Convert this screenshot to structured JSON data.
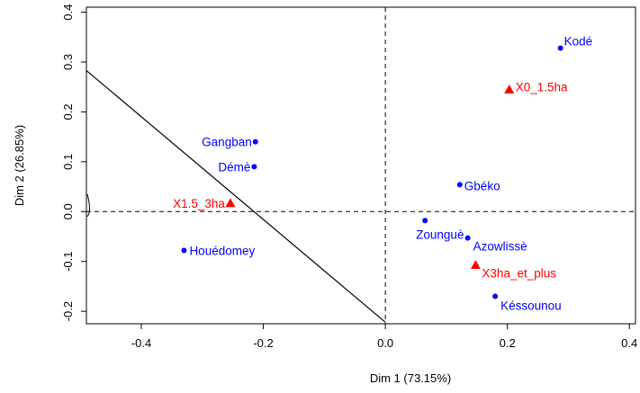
{
  "chart_data": {
    "type": "scatter",
    "xlabel": "Dim 1 (73.15%)",
    "ylabel": "Dim 2 (26.85%)",
    "xlim": [
      -0.49,
      0.41
    ],
    "ylim": [
      -0.225,
      0.41
    ],
    "xticks": [
      {
        "value": -0.4,
        "label": "-0.4"
      },
      {
        "value": -0.2,
        "label": "-0.2"
      },
      {
        "value": 0.0,
        "label": "0.0"
      },
      {
        "value": 0.2,
        "label": "0.2"
      },
      {
        "value": 0.4,
        "label": "0.4"
      }
    ],
    "yticks": [
      {
        "value": -0.2,
        "label": "-0.2"
      },
      {
        "value": -0.1,
        "label": "-0.1"
      },
      {
        "value": 0.0,
        "label": "0.0"
      },
      {
        "value": 0.1,
        "label": "0.1"
      },
      {
        "value": 0.2,
        "label": "0.2"
      },
      {
        "value": 0.3,
        "label": "0.3"
      },
      {
        "value": 0.4,
        "label": "0.4"
      }
    ],
    "reference_lines": {
      "x": 0,
      "y": 0,
      "style": "dashed"
    },
    "boundary_line": {
      "from": [
        -0.49,
        0.283
      ],
      "to": [
        0.0,
        -0.222
      ]
    },
    "series": [
      {
        "marker": "circle",
        "color": "#0000ff",
        "points": [
          {
            "label": "Kodé",
            "x": 0.287,
            "y": 0.328
          },
          {
            "label": "Gangban",
            "x": -0.213,
            "y": 0.14
          },
          {
            "label": "Démè",
            "x": -0.215,
            "y": 0.09
          },
          {
            "label": "Gbéko",
            "x": 0.122,
            "y": 0.054
          },
          {
            "label": "Zounguè",
            "x": 0.065,
            "y": -0.018
          },
          {
            "label": "Azowlissè",
            "x": 0.135,
            "y": -0.053
          },
          {
            "label": "Houédomey",
            "x": -0.33,
            "y": -0.078
          },
          {
            "label": "Késsounou",
            "x": 0.18,
            "y": -0.17
          }
        ]
      },
      {
        "marker": "triangle",
        "color": "#ff0000",
        "points": [
          {
            "label": "X0_1.5ha",
            "x": 0.203,
            "y": 0.245
          },
          {
            "label": "X1.5_3ha",
            "x": -0.254,
            "y": 0.017
          },
          {
            "label": "X3ha_et_plus",
            "x": 0.148,
            "y": -0.107
          }
        ]
      }
    ]
  }
}
